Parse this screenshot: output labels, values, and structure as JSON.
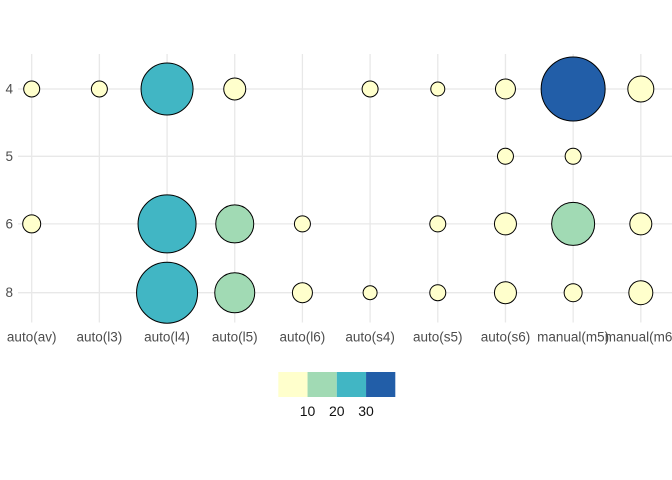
{
  "chart_data": {
    "type": "scatter",
    "subtype": "bubble-count-plot",
    "title": "",
    "grid": "on",
    "x_axis": {
      "label": "",
      "categories": [
        "auto(av)",
        "auto(l3)",
        "auto(l4)",
        "auto(l5)",
        "auto(l6)",
        "auto(s4)",
        "auto(s5)",
        "auto(s6)",
        "manual(m5)",
        "manual(m6)"
      ]
    },
    "y_axis": {
      "label": "",
      "categories": [
        "4",
        "5",
        "6",
        "8"
      ]
    },
    "points": [
      {
        "x": "auto(av)",
        "y": "4",
        "n": 2,
        "r": 8
      },
      {
        "x": "auto(l3)",
        "y": "4",
        "n": 2,
        "r": 8
      },
      {
        "x": "auto(l4)",
        "y": "4",
        "n": 22,
        "r": 26
      },
      {
        "x": "auto(l5)",
        "y": "4",
        "n": 4,
        "r": 11
      },
      {
        "x": "auto(s4)",
        "y": "4",
        "n": 2,
        "r": 8
      },
      {
        "x": "auto(s5)",
        "y": "4",
        "n": 1,
        "r": 7
      },
      {
        "x": "auto(s6)",
        "y": "4",
        "n": 3,
        "r": 10
      },
      {
        "x": "manual(m5)",
        "y": "4",
        "n": 33,
        "r": 32
      },
      {
        "x": "manual(m6)",
        "y": "4",
        "n": 5,
        "r": 13
      },
      {
        "x": "auto(s6)",
        "y": "5",
        "n": 2,
        "r": 8
      },
      {
        "x": "manual(m5)",
        "y": "5",
        "n": 2,
        "r": 8
      },
      {
        "x": "auto(av)",
        "y": "6",
        "n": 2,
        "r": 9
      },
      {
        "x": "auto(l4)",
        "y": "6",
        "n": 27,
        "r": 29
      },
      {
        "x": "auto(l5)",
        "y": "6",
        "n": 11,
        "r": 19
      },
      {
        "x": "auto(l6)",
        "y": "6",
        "n": 2,
        "r": 8
      },
      {
        "x": "auto(s5)",
        "y": "6",
        "n": 1,
        "r": 8
      },
      {
        "x": "auto(s6)",
        "y": "6",
        "n": 3,
        "r": 11
      },
      {
        "x": "manual(m5)",
        "y": "6",
        "n": 14,
        "r": 21.5
      },
      {
        "x": "manual(m6)",
        "y": "6",
        "n": 3,
        "r": 11
      },
      {
        "x": "auto(l4)",
        "y": "8",
        "n": 29,
        "r": 30.5
      },
      {
        "x": "auto(l5)",
        "y": "8",
        "n": 12,
        "r": 20
      },
      {
        "x": "auto(l6)",
        "y": "8",
        "n": 3,
        "r": 10
      },
      {
        "x": "auto(s4)",
        "y": "8",
        "n": 1,
        "r": 7
      },
      {
        "x": "auto(s5)",
        "y": "8",
        "n": 1,
        "r": 8
      },
      {
        "x": "auto(s6)",
        "y": "8",
        "n": 3,
        "r": 11
      },
      {
        "x": "manual(m5)",
        "y": "8",
        "n": 2,
        "r": 9
      },
      {
        "x": "manual(m6)",
        "y": "8",
        "n": 4,
        "r": 12
      }
    ],
    "legend": {
      "position": "bottom",
      "type": "binned-colorbar",
      "breaks": [
        10,
        20,
        30
      ],
      "labels": [
        "10",
        "20",
        "30"
      ],
      "palette": [
        "#FFFFCC",
        "#A1DAB4",
        "#41B6C4",
        "#225EA8"
      ]
    },
    "colors": {
      "background": "#FFFFFF",
      "gridline": "#E8E8E8",
      "axis_text": "#4D4D4D",
      "legend_text": "#111111",
      "bubble_stroke": "#000000"
    }
  }
}
